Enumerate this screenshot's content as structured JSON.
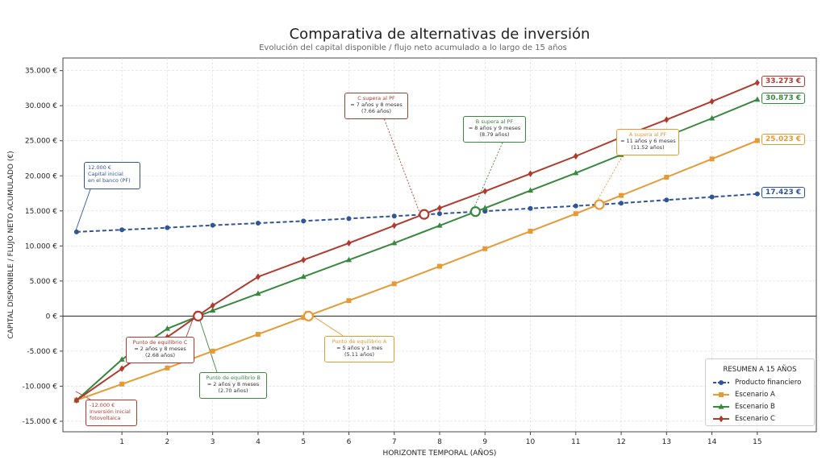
{
  "title": "Comparativa de alternativas de inversión",
  "subtitle": "Evolución del capital disponible / flujo neto acumulado a lo largo de 15 años",
  "chart_data": {
    "type": "line",
    "xlabel": "HORIZONTE TEMPORAL (AÑOS)",
    "ylabel": "CAPITAL DISPONIBLE / FLUJO NETO ACUMULADO (€)",
    "xlim": [
      -0.3,
      16.3
    ],
    "ylim": [
      -16500,
      36800
    ],
    "grid": true,
    "x_ticks": [
      1,
      2,
      3,
      4,
      5,
      6,
      7,
      8,
      9,
      10,
      11,
      12,
      13,
      14,
      15
    ],
    "x_tick_labels": [
      "1",
      "2",
      "3",
      "4",
      "5",
      "6",
      "7",
      "8",
      "9",
      "10",
      "11",
      "12",
      "13",
      "14",
      "15"
    ],
    "y_ticks": [
      -15000,
      -10000,
      -5000,
      0,
      5000,
      10000,
      15000,
      20000,
      25000,
      30000,
      35000
    ],
    "y_tick_labels": [
      "-15.000 €",
      "-10.000 €",
      "-5.000 €",
      "0 €",
      "5.000 €",
      "10.000 €",
      "15.000 €",
      "20.000 €",
      "25.000 €",
      "30.000 €",
      "35.000 €"
    ],
    "x": [
      0,
      1,
      2,
      3,
      4,
      5,
      6,
      7,
      8,
      9,
      10,
      11,
      12,
      13,
      14,
      15
    ],
    "series": [
      {
        "name": "Producto financiero",
        "color": "#2f5597",
        "dash": true,
        "marker": "circle",
        "values": [
          12000,
          12300,
          12600,
          12950,
          13250,
          13550,
          13900,
          14250,
          14600,
          14950,
          15350,
          15700,
          16100,
          16550,
          16980,
          17423
        ]
      },
      {
        "name": "Escenario A",
        "color": "#e69a35",
        "dash": false,
        "marker": "square",
        "values": [
          -12000,
          -9700,
          -7400,
          -5000,
          -2600,
          -200,
          2200,
          4600,
          7100,
          9600,
          12100,
          14600,
          17200,
          19800,
          22400,
          25023
        ]
      },
      {
        "name": "Escenario B",
        "color": "#3a873f",
        "dash": false,
        "marker": "triangle",
        "values": [
          -12000,
          -6200,
          -1800,
          800,
          3200,
          5600,
          8000,
          10400,
          12900,
          15400,
          17900,
          20400,
          23000,
          25600,
          28200,
          30873
        ]
      },
      {
        "name": "Escenario C",
        "color": "#b03a2e",
        "dash": false,
        "marker": "diamond",
        "values": [
          -12000,
          -7500,
          -3000,
          1500,
          5600,
          8000,
          10400,
          12900,
          15400,
          17800,
          20300,
          22800,
          25500,
          28000,
          30600,
          33273
        ]
      }
    ],
    "end_labels": [
      {
        "text": "33.273 €",
        "color": "#b03a2e",
        "y": 33273
      },
      {
        "text": "30.873 €",
        "color": "#3a873f",
        "y": 30873
      },
      {
        "text": "25.023 €",
        "color": "#e69a35",
        "y": 25023
      },
      {
        "text": "17.423 €",
        "color": "#2f5597",
        "y": 17423
      }
    ],
    "key_points": [
      {
        "name": "crossover-c",
        "x": 7.66,
        "y": 14500,
        "color": "#b03a2e",
        "fill": "#ffffff"
      },
      {
        "name": "crossover-b",
        "x": 8.79,
        "y": 14900,
        "color": "#3a873f",
        "fill": "#ffffff"
      },
      {
        "name": "crossover-a",
        "x": 11.52,
        "y": 15900,
        "color": "#e69a35",
        "fill": "#ffffff"
      },
      {
        "name": "breakeven-c",
        "x": 2.68,
        "y": 0,
        "color": "#b03a2e",
        "fill": "#ffffff"
      },
      {
        "name": "breakeven-a",
        "x": 5.11,
        "y": 0,
        "color": "#e69a35",
        "fill": "#ffffff"
      }
    ],
    "annotations": [
      {
        "name": "annotation-capital-inicial",
        "color": "#2f5597",
        "lines": [
          "12.000 €",
          "Capital inicial",
          "en el banco (PF)"
        ]
      },
      {
        "name": "annotation-inversion-inicial",
        "color": "#b03a2e",
        "lines": [
          "-12.000 €",
          "Inversión inicial",
          "fotovoltaica"
        ]
      },
      {
        "name": "annotation-c-supera",
        "color": "#b03a2e",
        "lines": [
          "C supera al PF",
          "≈ 7 años y 8 meses",
          "(7.66 años)"
        ]
      },
      {
        "name": "annotation-b-supera",
        "color": "#3a873f",
        "lines": [
          "B supera al PF",
          "≈ 8 años y 9 meses",
          "(8.79 años)"
        ]
      },
      {
        "name": "annotation-a-supera",
        "color": "#e69a35",
        "lines": [
          "A supera al PF",
          "≈ 11 años y 6 meses",
          "(11.52 años)"
        ]
      },
      {
        "name": "annotation-equilibrio-c",
        "color": "#b03a2e",
        "lines": [
          "Punto de equilibrio C",
          "≈ 2 años y 8 meses",
          "(2.68 años)"
        ]
      },
      {
        "name": "annotation-equilibrio-b",
        "color": "#3a873f",
        "lines": [
          "Punto de equilibrio B",
          "≈ 2 años y 8 meses",
          "(2.70 años)"
        ]
      },
      {
        "name": "annotation-equilibrio-a",
        "color": "#e69a35",
        "lines": [
          "Punto de equilibrio A",
          "≈ 5 años y 1 mes",
          "(5.11 años)"
        ]
      }
    ],
    "legend": {
      "title": "RESUMEN A 15 AÑOS",
      "position": "bottom-right",
      "items": [
        "Producto financiero",
        "Escenario A",
        "Escenario B",
        "Escenario C"
      ]
    }
  }
}
